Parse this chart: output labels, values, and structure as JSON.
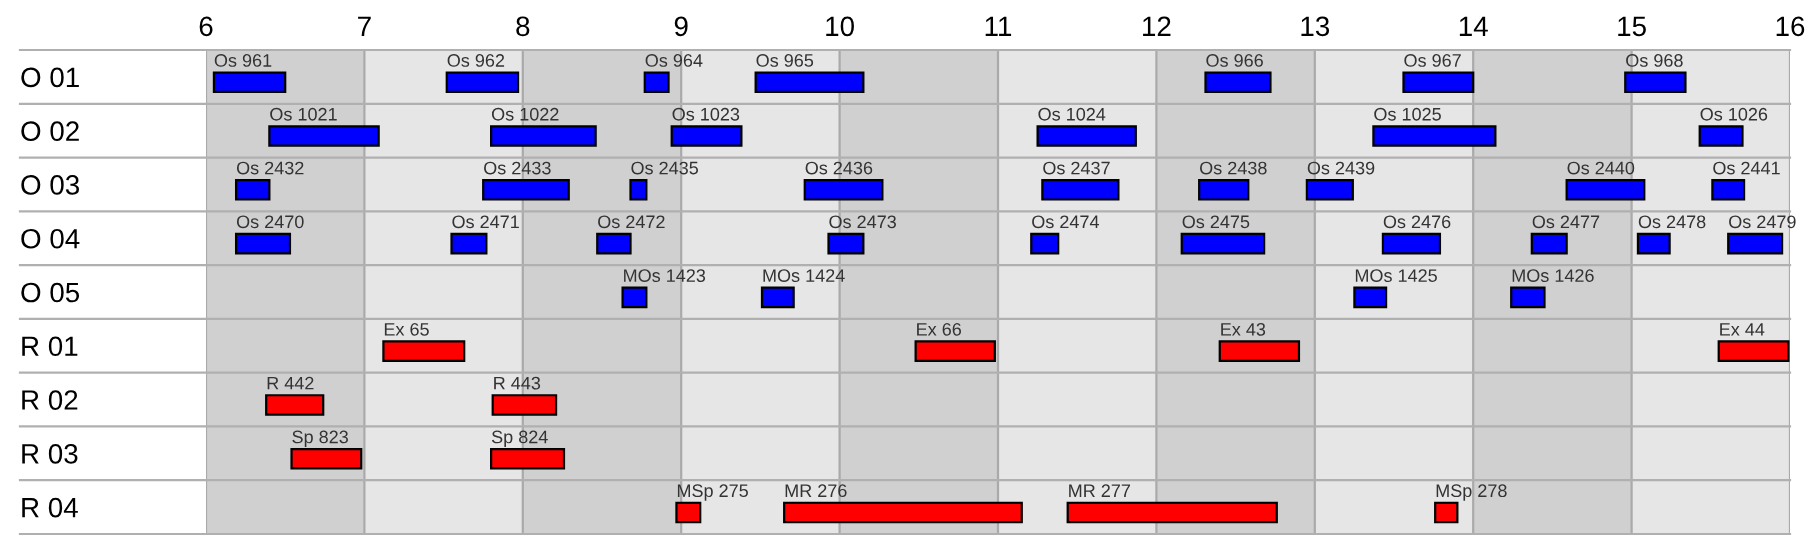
{
  "chart_data": {
    "type": "bar",
    "orientation": "horizontal",
    "categories": [
      "O 01",
      "O 02",
      "O 03",
      "O 04",
      "O 05",
      "R 01",
      "R 02",
      "R 03",
      "R 04"
    ],
    "xlim": [
      6,
      16
    ],
    "xticks": [
      6,
      7,
      8,
      9,
      10,
      11,
      12,
      13,
      14,
      15,
      16
    ],
    "grid": "x",
    "bands": [
      {
        "axis": "x",
        "from": 6,
        "to": 7,
        "color": "#d0d0d0"
      },
      {
        "axis": "x",
        "from": 8,
        "to": 9,
        "color": "#d0d0d0"
      },
      {
        "axis": "x",
        "from": 10,
        "to": 11,
        "color": "#d0d0d0"
      },
      {
        "axis": "x",
        "from": 12,
        "to": 13,
        "color": "#d0d0d0"
      },
      {
        "axis": "x",
        "from": 14,
        "to": 15,
        "color": "#d0d0d0"
      }
    ],
    "series": [
      {
        "name": "Os 961",
        "color": "#0000ff",
        "base": [
          6.05,
          null,
          null,
          null,
          null,
          null,
          null,
          null,
          null
        ],
        "values": [
          0.45,
          null,
          null,
          null,
          null,
          null,
          null,
          null,
          null
        ]
      },
      {
        "name": "Os 962",
        "color": "#0000ff",
        "base": [
          7.52,
          null,
          null,
          null,
          null,
          null,
          null,
          null,
          null
        ],
        "values": [
          0.45,
          null,
          null,
          null,
          null,
          null,
          null,
          null,
          null
        ]
      },
      {
        "name": "Os 964",
        "color": "#0000ff",
        "base": [
          8.77,
          null,
          null,
          null,
          null,
          null,
          null,
          null,
          null
        ],
        "values": [
          0.15,
          null,
          null,
          null,
          null,
          null,
          null,
          null,
          null
        ]
      },
      {
        "name": "Os 965",
        "color": "#0000ff",
        "base": [
          9.47,
          null,
          null,
          null,
          null,
          null,
          null,
          null,
          null
        ],
        "values": [
          0.68,
          null,
          null,
          null,
          null,
          null,
          null,
          null,
          null
        ]
      },
      {
        "name": "Os 966",
        "color": "#0000ff",
        "base": [
          12.31,
          null,
          null,
          null,
          null,
          null,
          null,
          null,
          null
        ],
        "values": [
          0.41,
          null,
          null,
          null,
          null,
          null,
          null,
          null,
          null
        ]
      },
      {
        "name": "Os 967",
        "color": "#0000ff",
        "base": [
          13.56,
          null,
          null,
          null,
          null,
          null,
          null,
          null,
          null
        ],
        "values": [
          0.44,
          null,
          null,
          null,
          null,
          null,
          null,
          null,
          null
        ]
      },
      {
        "name": "Os 968",
        "color": "#0000ff",
        "base": [
          14.96,
          null,
          null,
          null,
          null,
          null,
          null,
          null,
          null
        ],
        "values": [
          0.38,
          null,
          null,
          null,
          null,
          null,
          null,
          null,
          null
        ]
      },
      {
        "name": "Os 1021",
        "color": "#0000ff",
        "base": [
          null,
          6.4,
          null,
          null,
          null,
          null,
          null,
          null,
          null
        ],
        "values": [
          null,
          0.69,
          null,
          null,
          null,
          null,
          null,
          null,
          null
        ]
      },
      {
        "name": "Os 1022",
        "color": "#0000ff",
        "base": [
          null,
          7.8,
          null,
          null,
          null,
          null,
          null,
          null,
          null
        ],
        "values": [
          null,
          0.66,
          null,
          null,
          null,
          null,
          null,
          null,
          null
        ]
      },
      {
        "name": "Os 1023",
        "color": "#0000ff",
        "base": [
          null,
          8.94,
          null,
          null,
          null,
          null,
          null,
          null,
          null
        ],
        "values": [
          null,
          0.44,
          null,
          null,
          null,
          null,
          null,
          null,
          null
        ]
      },
      {
        "name": "Os 1024",
        "color": "#0000ff",
        "base": [
          null,
          11.25,
          null,
          null,
          null,
          null,
          null,
          null,
          null
        ],
        "values": [
          null,
          0.62,
          null,
          null,
          null,
          null,
          null,
          null,
          null
        ]
      },
      {
        "name": "Os 1025",
        "color": "#0000ff",
        "base": [
          null,
          13.37,
          null,
          null,
          null,
          null,
          null,
          null,
          null
        ],
        "values": [
          null,
          0.77,
          null,
          null,
          null,
          null,
          null,
          null,
          null
        ]
      },
      {
        "name": "Os 1026",
        "color": "#0000ff",
        "base": [
          null,
          15.43,
          null,
          null,
          null,
          null,
          null,
          null,
          null
        ],
        "values": [
          null,
          0.27,
          null,
          null,
          null,
          null,
          null,
          null,
          null
        ]
      },
      {
        "name": "Os 2432",
        "color": "#0000ff",
        "base": [
          null,
          null,
          6.19,
          null,
          null,
          null,
          null,
          null,
          null
        ],
        "values": [
          null,
          null,
          0.21,
          null,
          null,
          null,
          null,
          null,
          null
        ]
      },
      {
        "name": "Os 2433",
        "color": "#0000ff",
        "base": [
          null,
          null,
          7.75,
          null,
          null,
          null,
          null,
          null,
          null
        ],
        "values": [
          null,
          null,
          0.54,
          null,
          null,
          null,
          null,
          null,
          null
        ]
      },
      {
        "name": "Os 2435",
        "color": "#0000ff",
        "base": [
          null,
          null,
          8.68,
          null,
          null,
          null,
          null,
          null,
          null
        ],
        "values": [
          null,
          null,
          0.1,
          null,
          null,
          null,
          null,
          null,
          null
        ]
      },
      {
        "name": "Os 2436",
        "color": "#0000ff",
        "base": [
          null,
          null,
          9.78,
          null,
          null,
          null,
          null,
          null,
          null
        ],
        "values": [
          null,
          null,
          0.49,
          null,
          null,
          null,
          null,
          null,
          null
        ]
      },
      {
        "name": "Os 2437",
        "color": "#0000ff",
        "base": [
          null,
          null,
          11.28,
          null,
          null,
          null,
          null,
          null,
          null
        ],
        "values": [
          null,
          null,
          0.48,
          null,
          null,
          null,
          null,
          null,
          null
        ]
      },
      {
        "name": "Os 2438",
        "color": "#0000ff",
        "base": [
          null,
          null,
          12.27,
          null,
          null,
          null,
          null,
          null,
          null
        ],
        "values": [
          null,
          null,
          0.31,
          null,
          null,
          null,
          null,
          null,
          null
        ]
      },
      {
        "name": "Os 2439",
        "color": "#0000ff",
        "base": [
          null,
          null,
          12.95,
          null,
          null,
          null,
          null,
          null,
          null
        ],
        "values": [
          null,
          null,
          0.29,
          null,
          null,
          null,
          null,
          null,
          null
        ]
      },
      {
        "name": "Os 2440",
        "color": "#0000ff",
        "base": [
          null,
          null,
          14.59,
          null,
          null,
          null,
          null,
          null,
          null
        ],
        "values": [
          null,
          null,
          0.49,
          null,
          null,
          null,
          null,
          null,
          null
        ]
      },
      {
        "name": "Os 2441",
        "color": "#0000ff",
        "base": [
          null,
          null,
          15.51,
          null,
          null,
          null,
          null,
          null,
          null
        ],
        "values": [
          null,
          null,
          0.2,
          null,
          null,
          null,
          null,
          null,
          null
        ]
      },
      {
        "name": "Os 2470",
        "color": "#0000ff",
        "base": [
          null,
          null,
          null,
          6.19,
          null,
          null,
          null,
          null,
          null
        ],
        "values": [
          null,
          null,
          null,
          0.34,
          null,
          null,
          null,
          null,
          null
        ]
      },
      {
        "name": "Os 2471",
        "color": "#0000ff",
        "base": [
          null,
          null,
          null,
          7.55,
          null,
          null,
          null,
          null,
          null
        ],
        "values": [
          null,
          null,
          null,
          0.22,
          null,
          null,
          null,
          null,
          null
        ]
      },
      {
        "name": "Os 2472",
        "color": "#0000ff",
        "base": [
          null,
          null,
          null,
          8.47,
          null,
          null,
          null,
          null,
          null
        ],
        "values": [
          null,
          null,
          null,
          0.21,
          null,
          null,
          null,
          null,
          null
        ]
      },
      {
        "name": "Os 2473",
        "color": "#0000ff",
        "base": [
          null,
          null,
          null,
          9.93,
          null,
          null,
          null,
          null,
          null
        ],
        "values": [
          null,
          null,
          null,
          0.22,
          null,
          null,
          null,
          null,
          null
        ]
      },
      {
        "name": "Os 2474",
        "color": "#0000ff",
        "base": [
          null,
          null,
          null,
          11.21,
          null,
          null,
          null,
          null,
          null
        ],
        "values": [
          null,
          null,
          null,
          0.17,
          null,
          null,
          null,
          null,
          null
        ]
      },
      {
        "name": "Os 2475",
        "color": "#0000ff",
        "base": [
          null,
          null,
          null,
          12.16,
          null,
          null,
          null,
          null,
          null
        ],
        "values": [
          null,
          null,
          null,
          0.52,
          null,
          null,
          null,
          null,
          null
        ]
      },
      {
        "name": "Os 2476",
        "color": "#0000ff",
        "base": [
          null,
          null,
          null,
          13.43,
          null,
          null,
          null,
          null,
          null
        ],
        "values": [
          null,
          null,
          null,
          0.36,
          null,
          null,
          null,
          null,
          null
        ]
      },
      {
        "name": "Os 2477",
        "color": "#0000ff",
        "base": [
          null,
          null,
          null,
          14.37,
          null,
          null,
          null,
          null,
          null
        ],
        "values": [
          null,
          null,
          null,
          0.22,
          null,
          null,
          null,
          null,
          null
        ]
      },
      {
        "name": "Os 2478",
        "color": "#0000ff",
        "base": [
          null,
          null,
          null,
          15.04,
          null,
          null,
          null,
          null,
          null
        ],
        "values": [
          null,
          null,
          null,
          0.2,
          null,
          null,
          null,
          null,
          null
        ]
      },
      {
        "name": "Os 2479",
        "color": "#0000ff",
        "base": [
          null,
          null,
          null,
          15.61,
          null,
          null,
          null,
          null,
          null
        ],
        "values": [
          null,
          null,
          null,
          0.34,
          null,
          null,
          null,
          null,
          null
        ]
      },
      {
        "name": "MOs 1423",
        "color": "#0000ff",
        "base": [
          null,
          null,
          null,
          null,
          8.63,
          null,
          null,
          null,
          null
        ],
        "values": [
          null,
          null,
          null,
          null,
          0.15,
          null,
          null,
          null,
          null
        ]
      },
      {
        "name": "MOs 1424",
        "color": "#0000ff",
        "base": [
          null,
          null,
          null,
          null,
          9.51,
          null,
          null,
          null,
          null
        ],
        "values": [
          null,
          null,
          null,
          null,
          0.2,
          null,
          null,
          null,
          null
        ]
      },
      {
        "name": "MOs 1425",
        "color": "#0000ff",
        "base": [
          null,
          null,
          null,
          null,
          13.25,
          null,
          null,
          null,
          null
        ],
        "values": [
          null,
          null,
          null,
          null,
          0.2,
          null,
          null,
          null,
          null
        ]
      },
      {
        "name": "MOs 1426",
        "color": "#0000ff",
        "base": [
          null,
          null,
          null,
          null,
          14.24,
          null,
          null,
          null,
          null
        ],
        "values": [
          null,
          null,
          null,
          null,
          0.21,
          null,
          null,
          null,
          null
        ]
      },
      {
        "name": "Ex 65",
        "color": "#ff0000",
        "base": [
          null,
          null,
          null,
          null,
          null,
          7.12,
          null,
          null,
          null
        ],
        "values": [
          null,
          null,
          null,
          null,
          null,
          0.51,
          null,
          null,
          null
        ]
      },
      {
        "name": "Ex 66",
        "color": "#ff0000",
        "base": [
          null,
          null,
          null,
          null,
          null,
          10.48,
          null,
          null,
          null
        ],
        "values": [
          null,
          null,
          null,
          null,
          null,
          0.5,
          null,
          null,
          null
        ]
      },
      {
        "name": "Ex 43",
        "color": "#ff0000",
        "base": [
          null,
          null,
          null,
          null,
          null,
          12.4,
          null,
          null,
          null
        ],
        "values": [
          null,
          null,
          null,
          null,
          null,
          0.5,
          null,
          null,
          null
        ]
      },
      {
        "name": "Ex 44",
        "color": "#ff0000",
        "base": [
          null,
          null,
          null,
          null,
          null,
          15.55,
          null,
          null,
          null
        ],
        "values": [
          null,
          null,
          null,
          null,
          null,
          0.44,
          null,
          null,
          null
        ]
      },
      {
        "name": "R 442",
        "color": "#ff0000",
        "base": [
          null,
          null,
          null,
          null,
          null,
          null,
          6.38,
          null,
          null
        ],
        "values": [
          null,
          null,
          null,
          null,
          null,
          null,
          0.36,
          null,
          null
        ]
      },
      {
        "name": "R 443",
        "color": "#ff0000",
        "base": [
          null,
          null,
          null,
          null,
          null,
          null,
          7.81,
          null,
          null
        ],
        "values": [
          null,
          null,
          null,
          null,
          null,
          null,
          0.4,
          null,
          null
        ]
      },
      {
        "name": "Sp 823",
        "color": "#ff0000",
        "base": [
          null,
          null,
          null,
          null,
          null,
          null,
          null,
          6.54,
          null
        ],
        "values": [
          null,
          null,
          null,
          null,
          null,
          null,
          null,
          0.44,
          null
        ]
      },
      {
        "name": "Sp 824",
        "color": "#ff0000",
        "base": [
          null,
          null,
          null,
          null,
          null,
          null,
          null,
          7.8,
          null
        ],
        "values": [
          null,
          null,
          null,
          null,
          null,
          null,
          null,
          0.46,
          null
        ]
      },
      {
        "name": "MSp 275",
        "color": "#ff0000",
        "base": [
          null,
          null,
          null,
          null,
          null,
          null,
          null,
          null,
          8.97
        ],
        "values": [
          null,
          null,
          null,
          null,
          null,
          null,
          null,
          null,
          0.15
        ]
      },
      {
        "name": "MR 276",
        "color": "#ff0000",
        "base": [
          null,
          null,
          null,
          null,
          null,
          null,
          null,
          null,
          9.65
        ],
        "values": [
          null,
          null,
          null,
          null,
          null,
          null,
          null,
          null,
          1.5
        ]
      },
      {
        "name": "MR 277",
        "color": "#ff0000",
        "base": [
          null,
          null,
          null,
          null,
          null,
          null,
          null,
          null,
          11.44
        ],
        "values": [
          null,
          null,
          null,
          null,
          null,
          null,
          null,
          null,
          1.32
        ]
      },
      {
        "name": "MSp 278",
        "color": "#ff0000",
        "base": [
          null,
          null,
          null,
          null,
          null,
          null,
          null,
          null,
          13.76
        ],
        "values": [
          null,
          null,
          null,
          null,
          null,
          null,
          null,
          null,
          0.14
        ]
      }
    ]
  }
}
